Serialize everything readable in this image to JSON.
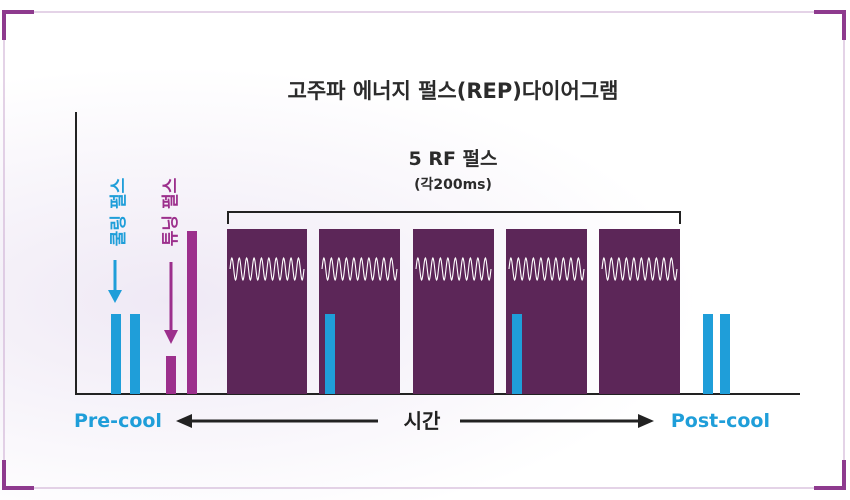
{
  "title": "고주파 에너지 펄스(REP)다이어그램",
  "rf_group": {
    "label": "5 RF 펄스",
    "sublabel": "(각200ms)"
  },
  "labels": {
    "cooling_pulse": "쿨링 펄스",
    "tuning_pulse": "튜닝 펄스",
    "pre_cool": "Pre-cool",
    "post_cool": "Post-cool",
    "time": "시간"
  },
  "colors": {
    "blue": "#1f9ed9",
    "magenta": "#9c2f8c",
    "rf_purple": "#5c2658",
    "frame_purple": "#8e3a8e",
    "axis": "#222222",
    "title": "#2b2b2b"
  },
  "rf_pulse_count": 5
}
